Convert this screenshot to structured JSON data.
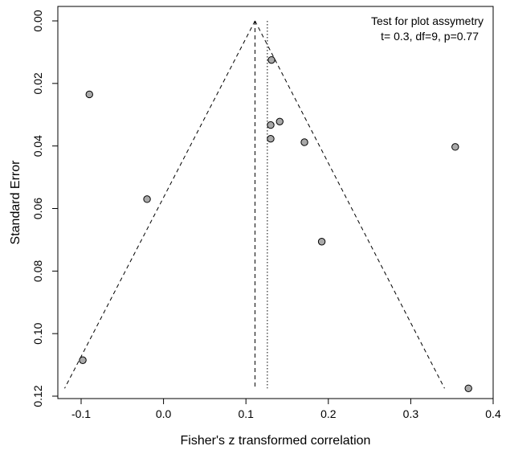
{
  "chart_data": {
    "type": "scatter",
    "title": "",
    "xlabel": "Fisher's z transformed correlation",
    "ylabel": "Standard Error",
    "xlim": [
      -0.125,
      0.4
    ],
    "ylim": [
      0,
      0.12
    ],
    "y_reversed": true,
    "x_ticks": [
      -0.1,
      0.0,
      0.1,
      0.2,
      0.3,
      0.4
    ],
    "x_tick_labels": [
      "-0.1",
      "0.0",
      "0.1",
      "0.2",
      "0.3",
      "0.4"
    ],
    "y_ticks": [
      0.0,
      0.02,
      0.04,
      0.06,
      0.08,
      0.1,
      0.12
    ],
    "y_tick_labels": [
      "0.00",
      "0.02",
      "0.04",
      "0.06",
      "0.08",
      "0.10",
      "0.12"
    ],
    "points": [
      {
        "x": 0.131,
        "y": 0.0125
      },
      {
        "x": -0.09,
        "y": 0.0235
      },
      {
        "x": 0.141,
        "y": 0.0322
      },
      {
        "x": 0.13,
        "y": 0.0333
      },
      {
        "x": 0.13,
        "y": 0.0377
      },
      {
        "x": 0.171,
        "y": 0.0388
      },
      {
        "x": 0.354,
        "y": 0.0403
      },
      {
        "x": -0.02,
        "y": 0.057
      },
      {
        "x": 0.192,
        "y": 0.0706
      },
      {
        "x": -0.098,
        "y": 0.1085
      },
      {
        "x": 0.37,
        "y": 0.1175
      }
    ],
    "funnel": {
      "apex": {
        "x": 0.111,
        "y": 0.0
      },
      "left_base": {
        "x": -0.12,
        "y": 0.1175
      },
      "right_base": {
        "x": 0.341,
        "y": 0.1175
      }
    },
    "reference_lines": [
      {
        "style": "dashed",
        "x": 0.111,
        "y_from": 0.0,
        "y_to": 0.1175
      },
      {
        "style": "dotted",
        "x": 0.126,
        "y_from": 0.0,
        "y_to": 0.1175
      }
    ],
    "annotation": {
      "line1": "Test for plot assymetry",
      "line2": "t= 0.3, df=9, p=0.77",
      "placement": "top-right"
    },
    "grid": false,
    "legend": "none"
  }
}
